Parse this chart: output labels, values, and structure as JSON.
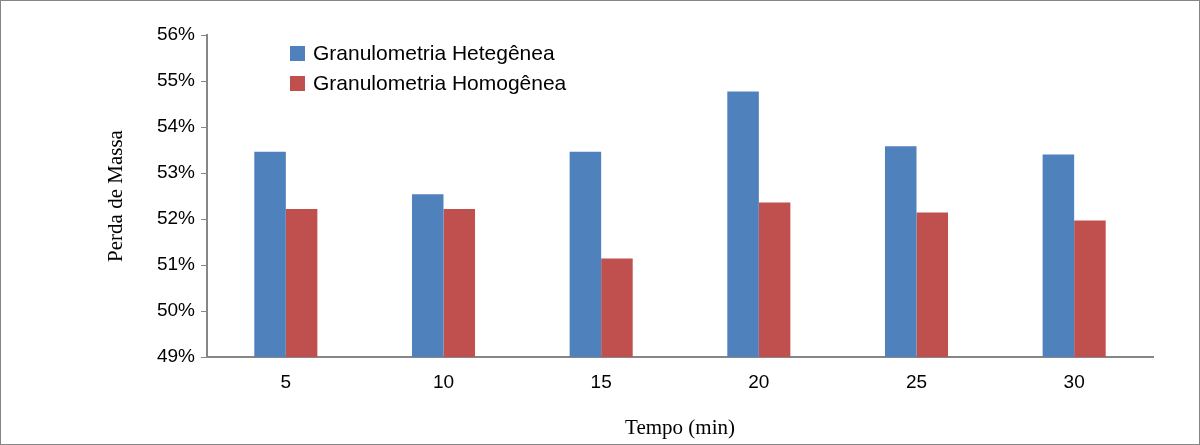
{
  "chart_data": {
    "type": "bar",
    "xlabel": "Tempo (min)",
    "ylabel": "Perda de Massa",
    "categories": [
      "5",
      "10",
      "15",
      "20",
      "25",
      "30"
    ],
    "series": [
      {
        "name": "Granulometria Hetegênea",
        "color": "#4f81bd",
        "values": [
          53.46,
          52.54,
          53.46,
          54.77,
          53.58,
          53.4
        ]
      },
      {
        "name": "Granulometria Homogênea",
        "color": "#c0504d",
        "values": [
          52.22,
          52.22,
          51.14,
          52.36,
          52.14,
          51.97
        ]
      }
    ],
    "ylim": [
      49,
      56
    ],
    "yticks": [
      {
        "value": 49,
        "label": "49%"
      },
      {
        "value": 50,
        "label": "50%"
      },
      {
        "value": 51,
        "label": "51%"
      },
      {
        "value": 52,
        "label": "52%"
      },
      {
        "value": 53,
        "label": "53%"
      },
      {
        "value": 54,
        "label": "54%"
      },
      {
        "value": 55,
        "label": "55%"
      },
      {
        "value": 56,
        "label": "56%"
      }
    ],
    "grid": false,
    "legend": "top left"
  }
}
